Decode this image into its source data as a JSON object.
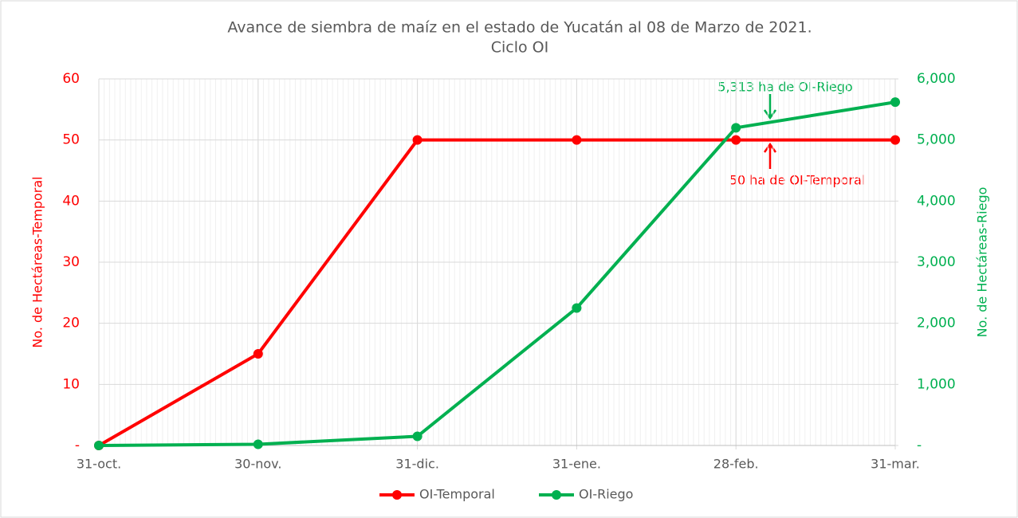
{
  "chart_data": {
    "type": "line",
    "title": "Avance de siembra de maíz en el estado de Yucatán al 08 de Marzo de 2021.",
    "subtitle": "Ciclo OI",
    "categories": [
      "31-oct.",
      "30-nov.",
      "31-dic.",
      "31-ene.",
      "28-feb.",
      "31-mar."
    ],
    "series": [
      {
        "name": "OI-Temporal",
        "color": "#ff0000",
        "values": [
          0,
          15,
          50,
          50,
          50,
          50
        ]
      },
      {
        "name": "OI-Riego",
        "color": "#00b050",
        "axis": "y2",
        "values": [
          0,
          20,
          150,
          2250,
          5200,
          5620
        ]
      }
    ],
    "ylabel": "No. de Hectáreas-Temporal",
    "y2label": "No. de Hectáreas-Riego",
    "ylim": [
      0,
      60
    ],
    "yticks": [
      {
        "value": 0,
        "label": "-"
      },
      10,
      20,
      30,
      40,
      50,
      60
    ],
    "y2lim": [
      0,
      6000
    ],
    "y2ticks": [
      {
        "value": 0,
        "label": "-"
      },
      {
        "value": 1000,
        "label": "1,000"
      },
      {
        "value": 2000,
        "label": "2,000"
      },
      {
        "value": 3000,
        "label": "3,000"
      },
      {
        "value": 4000,
        "label": "4,000"
      },
      {
        "value": 5000,
        "label": "5,000"
      },
      {
        "value": 6000,
        "label": "6,000"
      }
    ],
    "annotations": [
      "5,313 ha de OI-Riego",
      "50  ha de OI-Temporal"
    ],
    "grid": true,
    "legend": "bottom"
  }
}
